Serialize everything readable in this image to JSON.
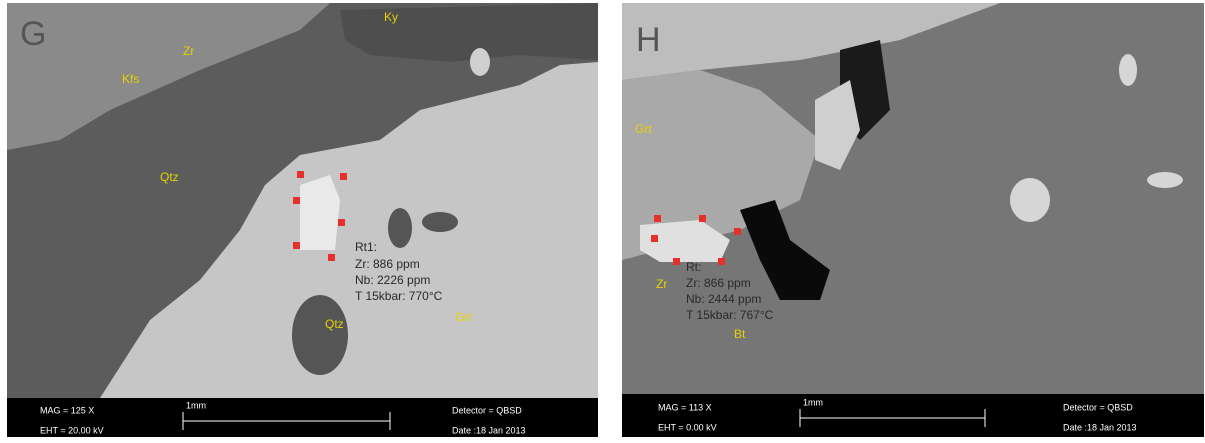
{
  "panels": [
    {
      "letter": "G",
      "minerals": [
        "Zr",
        "Ky",
        "Kfs",
        "Qtz",
        "Qtz",
        "Grt"
      ],
      "annotation": [
        "Rt1:",
        "Zr: 886 ppm",
        "Nb: 2226 ppm",
        "T 15kbar: 770°C"
      ],
      "info": {
        "mag": "MAG =   125 X",
        "eht": "EHT = 20.00 kV",
        "scale": "1mm",
        "detector": "Detector = QBSD",
        "date": "Date :18 Jan 2013"
      }
    },
    {
      "letter": "H",
      "minerals": [
        "Grt",
        "Zr",
        "Bt"
      ],
      "annotation": [
        "Rt:",
        "Zr: 866 ppm",
        "Nb: 2444 ppm",
        "T 15kbar: 767°C"
      ],
      "info": {
        "mag": "MAG =   113 X",
        "eht": "EHT =  0.00 kV",
        "scale": "1mm",
        "detector": "Detector = QBSD",
        "date": "Date :18 Jan 2013"
      }
    }
  ]
}
